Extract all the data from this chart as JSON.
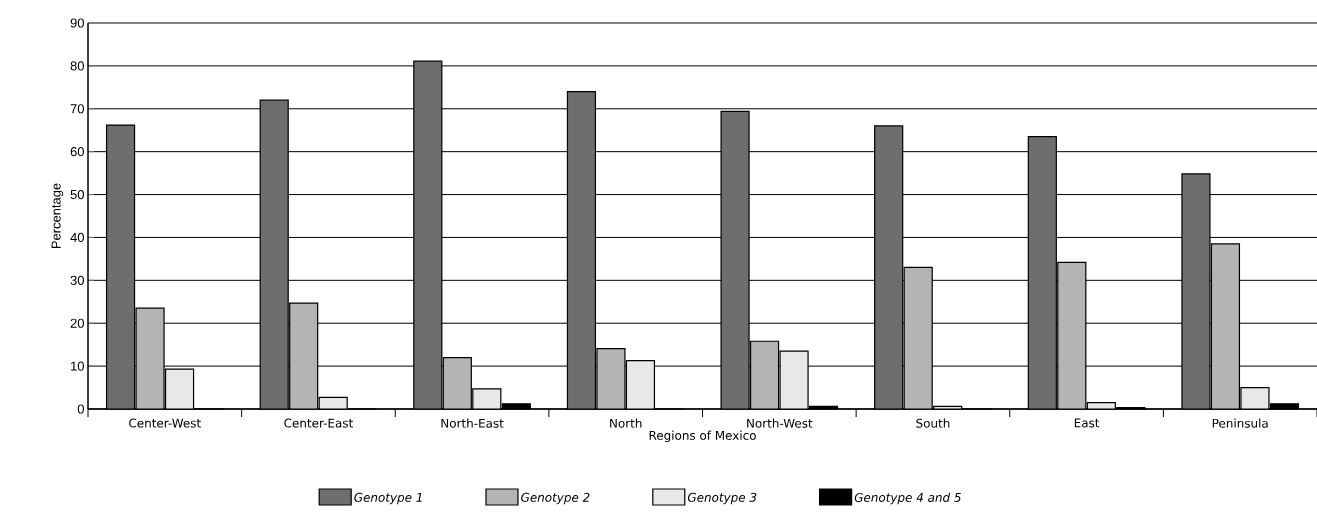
{
  "chart_data": {
    "type": "bar",
    "xlabel": "Regions of Mexico",
    "ylabel": "Percentage",
    "categories": [
      "Center-West",
      "Center-East",
      "North-East",
      "North",
      "North-West",
      "South",
      "East",
      "Peninsula"
    ],
    "series": [
      {
        "name": "Genotype 1",
        "color": "#6e6e6e",
        "values": [
          66.2,
          72.0,
          81.1,
          74.0,
          69.4,
          66.0,
          63.5,
          54.8
        ]
      },
      {
        "name": "Genotype 2",
        "color": "#b4b4b4",
        "values": [
          23.5,
          24.7,
          12.0,
          14.1,
          15.8,
          33.0,
          34.2,
          38.5
        ]
      },
      {
        "name": "Genotype 3",
        "color": "#e8e8e8",
        "values": [
          9.3,
          2.7,
          4.7,
          11.3,
          13.5,
          0.6,
          1.5,
          5.0
        ]
      },
      {
        "name": "Genotype 4 and 5",
        "color": "#000000",
        "values": [
          0,
          0,
          1.2,
          0,
          0.6,
          0,
          0.3,
          1.2
        ]
      }
    ],
    "ylim": [
      0,
      90
    ],
    "yticks": [
      0,
      10,
      20,
      30,
      40,
      50,
      60,
      70,
      80,
      90
    ],
    "grid": "y",
    "legend": "bottom"
  }
}
